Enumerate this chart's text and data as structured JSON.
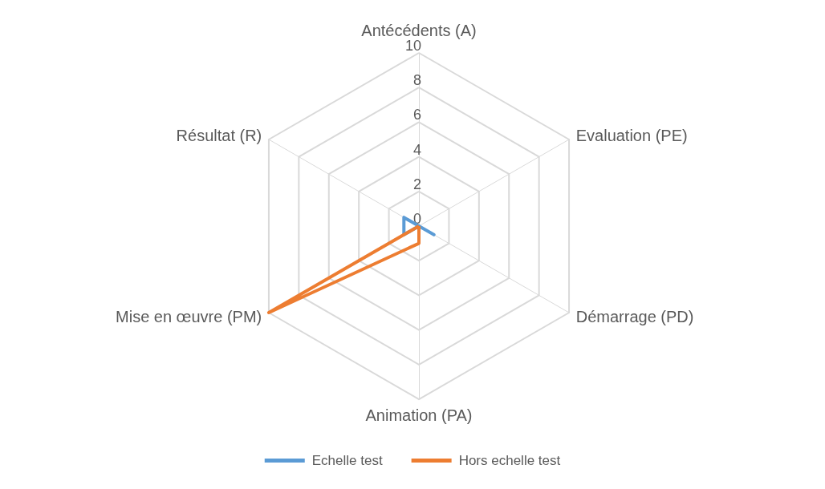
{
  "chart_data": {
    "type": "radar",
    "categories": [
      "Antécédents (A)",
      "Evaluation (PE)",
      "Démarrage (PD)",
      "Animation (PA)",
      "Mise en œuvre (PM)",
      "Résultat (R)"
    ],
    "series": [
      {
        "name": "Echelle test",
        "color": "#5b9bd5",
        "values": [
          0,
          0,
          1,
          0,
          1,
          1
        ]
      },
      {
        "name": "Hors echelle test",
        "color": "#ed7d31",
        "values": [
          0,
          0,
          0,
          1,
          10,
          0
        ]
      }
    ],
    "ylim": [
      0,
      10
    ],
    "yticks": [
      0,
      2,
      4,
      6,
      8,
      10
    ],
    "grid": true,
    "legend": "bottom",
    "marker": "none"
  }
}
